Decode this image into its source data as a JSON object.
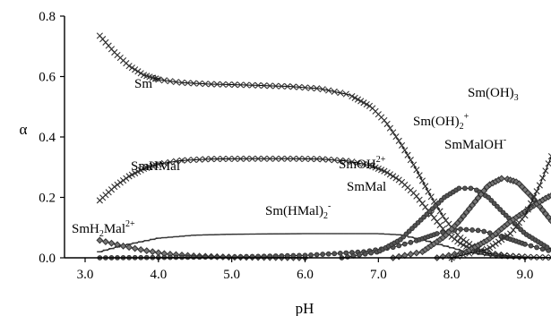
{
  "chart_data": {
    "type": "line",
    "title": "",
    "xlabel": "pH",
    "ylabel": "α",
    "xlim": [
      3.0,
      9.6
    ],
    "ylim": [
      0.0,
      0.8
    ],
    "x_ticks": [
      "3.0",
      "4.0",
      "5.0",
      "6.0",
      "7.0",
      "8.0",
      "9.0"
    ],
    "y_ticks": [
      "0.0",
      "0.2",
      "0.4",
      "0.6",
      "0.8"
    ],
    "grid": false,
    "legend": "none",
    "colors": {
      "line": "#000000",
      "marker": "#333333"
    },
    "series": [
      {
        "key": "sm3",
        "label": {
          "base": "Sm",
          "sup": "3+"
        },
        "marker": "x",
        "x": [
          3.2,
          3.4,
          3.6,
          3.8,
          4.0,
          4.3,
          4.7,
          5.2,
          5.8,
          6.2,
          6.6,
          6.9,
          7.1,
          7.3,
          7.5,
          7.7,
          7.9,
          8.1,
          8.3,
          8.5,
          8.8,
          9.1,
          9.4
        ],
        "values": [
          0.735,
          0.68,
          0.635,
          0.605,
          0.59,
          0.58,
          0.575,
          0.572,
          0.567,
          0.56,
          0.54,
          0.5,
          0.45,
          0.38,
          0.3,
          0.21,
          0.13,
          0.07,
          0.035,
          0.015,
          0.006,
          0.002,
          0.001
        ]
      },
      {
        "key": "smhmal",
        "label": {
          "base": "SmHMal",
          "sup": "+"
        },
        "marker": "x",
        "x": [
          3.2,
          3.4,
          3.6,
          3.8,
          4.0,
          4.3,
          4.7,
          5.2,
          5.8,
          6.2,
          6.6,
          6.9,
          7.1,
          7.3,
          7.5,
          7.7,
          7.9,
          8.1,
          8.3,
          8.6,
          9.0
        ],
        "values": [
          0.19,
          0.235,
          0.27,
          0.295,
          0.31,
          0.322,
          0.327,
          0.328,
          0.328,
          0.327,
          0.32,
          0.305,
          0.285,
          0.255,
          0.21,
          0.15,
          0.09,
          0.05,
          0.025,
          0.008,
          0.002
        ]
      },
      {
        "key": "smhmal2",
        "label": {
          "base": "Sm(HMal)",
          "sub": "2",
          "sup": "-"
        },
        "marker": "-",
        "x": [
          3.2,
          3.5,
          4.0,
          4.5,
          5.0,
          6.0,
          7.0,
          7.3,
          7.6,
          7.9,
          8.2,
          8.5,
          8.8,
          9.2
        ],
        "values": [
          0.02,
          0.04,
          0.065,
          0.075,
          0.078,
          0.08,
          0.08,
          0.076,
          0.06,
          0.04,
          0.02,
          0.008,
          0.003,
          0.001
        ]
      },
      {
        "key": "smh2mal",
        "label": {
          "base": "SmH",
          "sub": "2",
          "mid": "Mal",
          "sup": "2+"
        },
        "marker": "diamond",
        "x": [
          3.2,
          3.5,
          3.8,
          4.1,
          4.5,
          5.0,
          5.5,
          6.0
        ],
        "values": [
          0.058,
          0.04,
          0.025,
          0.013,
          0.006,
          0.002,
          0.001,
          0.0
        ]
      },
      {
        "key": "smmal",
        "label": {
          "base": "SmMal"
        },
        "marker": "circle",
        "x": [
          3.2,
          4.0,
          5.0,
          6.0,
          6.8,
          7.2,
          7.5,
          7.8,
          8.1,
          8.4,
          8.7,
          9.0,
          9.3,
          9.6
        ],
        "values": [
          0.0,
          0.001,
          0.003,
          0.008,
          0.02,
          0.035,
          0.055,
          0.08,
          0.095,
          0.09,
          0.07,
          0.045,
          0.025,
          0.012
        ]
      },
      {
        "key": "smoh",
        "label": {
          "base": "SmOH",
          "sup": "2+"
        },
        "marker": "circle",
        "x": [
          6.5,
          7.0,
          7.3,
          7.6,
          7.9,
          8.1,
          8.3,
          8.5,
          8.7,
          9.0,
          9.3,
          9.6
        ],
        "values": [
          0.0,
          0.02,
          0.06,
          0.13,
          0.2,
          0.23,
          0.23,
          0.2,
          0.15,
          0.08,
          0.035,
          0.015
        ]
      },
      {
        "key": "smoh2",
        "label": {
          "base": "Sm(OH)",
          "sub": "2",
          "sup": "+"
        },
        "marker": "diamond",
        "x": [
          7.2,
          7.6,
          7.9,
          8.1,
          8.3,
          8.5,
          8.7,
          8.9,
          9.1,
          9.3,
          9.5,
          9.6
        ],
        "values": [
          0.0,
          0.02,
          0.07,
          0.12,
          0.18,
          0.24,
          0.265,
          0.25,
          0.2,
          0.14,
          0.08,
          0.06
        ]
      },
      {
        "key": "smmaloh",
        "label": {
          "base": "SmMalOH",
          "sup": "-"
        },
        "marker": "diamond",
        "x": [
          7.8,
          8.2,
          8.5,
          8.8,
          9.1,
          9.3,
          9.5,
          9.6
        ],
        "values": [
          0.0,
          0.02,
          0.06,
          0.12,
          0.17,
          0.2,
          0.22,
          0.22
        ]
      },
      {
        "key": "smoh3",
        "label": {
          "base": "Sm(OH)",
          "sub": "3"
        },
        "marker": "x",
        "x": [
          8.0,
          8.5,
          8.8,
          9.0,
          9.2,
          9.4,
          9.6
        ],
        "values": [
          0.0,
          0.03,
          0.08,
          0.14,
          0.24,
          0.36,
          0.47
        ]
      }
    ]
  }
}
